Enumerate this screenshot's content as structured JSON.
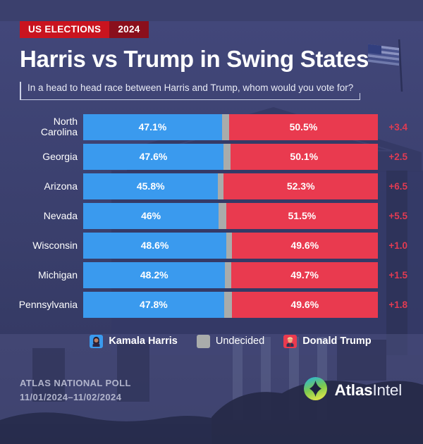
{
  "header": {
    "badge_primary": "US ELECTIONS",
    "badge_year": "2024",
    "title": "Harris vs Trump in Swing States",
    "subtitle": "In a head to head race between Harris and Trump, whom would you vote for?"
  },
  "chart_data": {
    "type": "bar",
    "variant": "horizontal-stacked-100pct",
    "categories": [
      "North Carolina",
      "Georgia",
      "Arizona",
      "Nevada",
      "Wisconsin",
      "Michigan",
      "Pennsylvania"
    ],
    "series": [
      {
        "name": "Kamala Harris",
        "color": "#3a9aee",
        "values": [
          47.1,
          47.6,
          45.8,
          46,
          48.6,
          48.2,
          47.8
        ],
        "labels": [
          "47.1%",
          "47.6%",
          "45.8%",
          "46%",
          "48.6%",
          "48.2%",
          "47.8%"
        ]
      },
      {
        "name": "Undecided",
        "color": "#a9acab",
        "values": [
          2.4,
          2.3,
          1.9,
          2.5,
          1.8,
          2.1,
          2.6
        ]
      },
      {
        "name": "Donald Trump",
        "color": "#e93a4f",
        "values": [
          50.5,
          50.1,
          52.3,
          51.5,
          49.6,
          49.7,
          49.6
        ],
        "labels": [
          "50.5%",
          "50.1%",
          "52.3%",
          "51.5%",
          "49.6%",
          "49.7%",
          "49.6%"
        ]
      }
    ],
    "margins": [
      "+3.4",
      "+2.5",
      "+6.5",
      "+5.5",
      "+1.0",
      "+1.5",
      "+1.8"
    ],
    "margin_leader": "Donald Trump",
    "xlim": [
      0,
      100
    ],
    "grid": false,
    "legend_position": "bottom"
  },
  "legend": {
    "harris": {
      "label": "Kamala Harris"
    },
    "undecided": {
      "label": "Undecided"
    },
    "trump": {
      "label": "Donald Trump"
    }
  },
  "footer": {
    "poll_name": "ATLAS NATIONAL POLL",
    "poll_dates": "11/01/2024–11/02/2024",
    "brand_bold": "Atlas",
    "brand_light": "Intel"
  },
  "colors": {
    "background": "#3b406d",
    "badge-red": "#c9141f",
    "badge-dark-red": "#8a0f1c",
    "harris-blue": "#3a9aee",
    "undecided-gray": "#a9acab",
    "trump-red": "#e93a4f",
    "margin-red": "#e23b53",
    "bracket": "#ccd1e6"
  }
}
